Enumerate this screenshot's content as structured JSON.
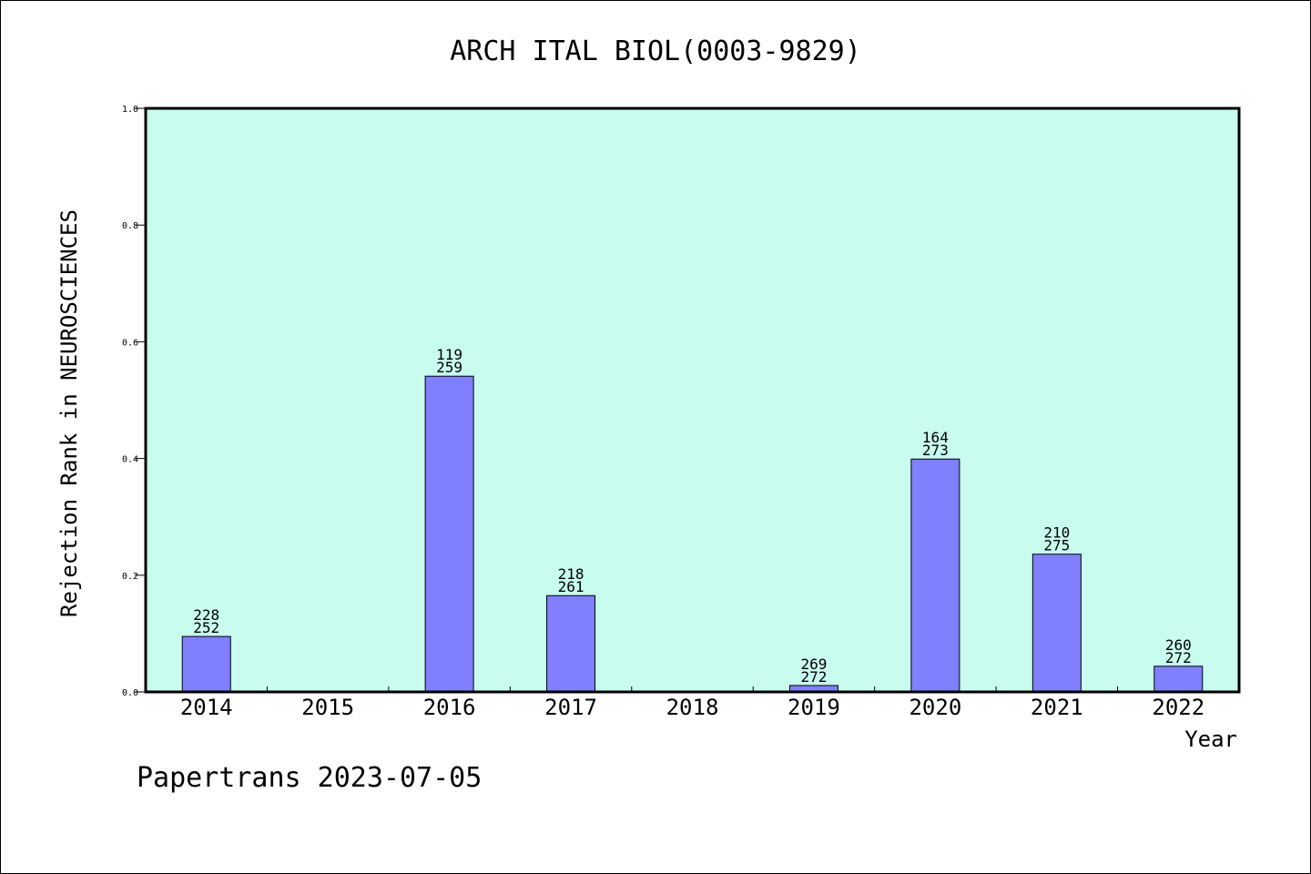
{
  "chart_data": {
    "type": "bar",
    "title": "ARCH ITAL BIOL(0003-9829)",
    "xlabel": "Year",
    "ylabel": "Rejection Rank in NEUROSCIENCES",
    "ylim": [
      0,
      1.0
    ],
    "yticks": [
      "0.0",
      "0.2",
      "0.4",
      "0.6",
      "0.8",
      "1.0"
    ],
    "categories": [
      "2014",
      "2015",
      "2016",
      "2017",
      "2018",
      "2019",
      "2020",
      "2021",
      "2022"
    ],
    "values": [
      0.095,
      null,
      0.541,
      0.165,
      null,
      0.011,
      0.399,
      0.236,
      0.044
    ],
    "annotations": [
      [
        "228",
        "252"
      ],
      null,
      [
        "119",
        "259"
      ],
      [
        "218",
        "261"
      ],
      null,
      [
        "269",
        "272"
      ],
      [
        "164",
        "273"
      ],
      [
        "210",
        "275"
      ],
      [
        "260",
        "272"
      ]
    ],
    "grid": false,
    "legend": "none",
    "colors": {
      "plot_background": "#c8fcee",
      "bar_fill": "#8080ff",
      "bar_stroke": "#000000"
    }
  },
  "footer": {
    "text": "Papertrans 2023-07-05"
  }
}
